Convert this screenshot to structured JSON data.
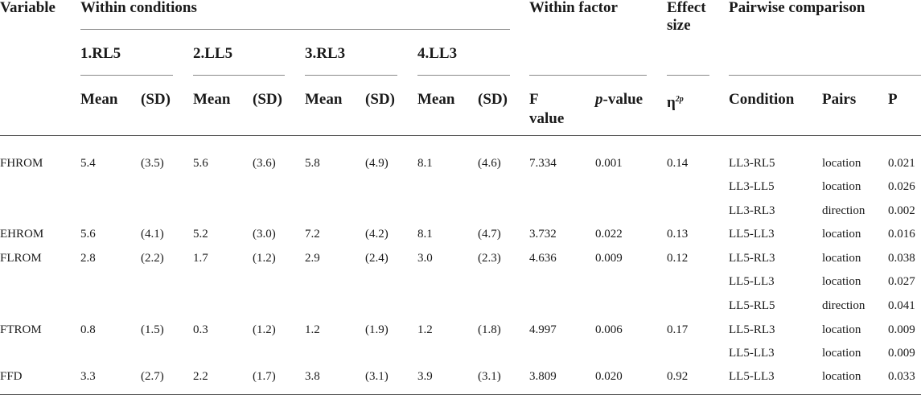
{
  "header": {
    "variable": "Variable",
    "within_conditions": "Within conditions",
    "within_factor": "Within factor",
    "effect": "Effect",
    "size": "size",
    "pairwise": "Pairwise comparison",
    "conditions": [
      "1.RL5",
      "2.LL5",
      "3.RL3",
      "4.LL3"
    ],
    "mean": "Mean",
    "sd": "(SD)",
    "f_line1": "F",
    "f_line2": "value",
    "p_italic": "p",
    "p_suffix": "-value",
    "eta": "η",
    "eta_sup": "2p",
    "condition": "Condition",
    "pairs": "Pairs",
    "p": "P"
  },
  "rows": [
    {
      "variable": "FHROM",
      "rl5_mean": "5.4",
      "rl5_sd": "(3.5)",
      "ll5_mean": "5.6",
      "ll5_sd": "(3.6)",
      "rl3_mean": "5.8",
      "rl3_sd": "(4.9)",
      "ll3_mean": "8.1",
      "ll3_sd": "(4.6)",
      "f": "7.334",
      "pval": "0.001",
      "eta": "0.14",
      "comparisons": [
        {
          "condition": "LL3-RL5",
          "pair": "location",
          "p": "0.021"
        },
        {
          "condition": "LL3-LL5",
          "pair": "location",
          "p": "0.026"
        },
        {
          "condition": "LL3-RL3",
          "pair": "direction",
          "p": "0.002"
        }
      ]
    },
    {
      "variable": "EHROM",
      "rl5_mean": "5.6",
      "rl5_sd": "(4.1)",
      "ll5_mean": "5.2",
      "ll5_sd": "(3.0)",
      "rl3_mean": "7.2",
      "rl3_sd": "(4.2)",
      "ll3_mean": "8.1",
      "ll3_sd": "(4.7)",
      "f": "3.732",
      "pval": "0.022",
      "eta": "0.13",
      "comparisons": [
        {
          "condition": "LL5-LL3",
          "pair": "location",
          "p": "0.016"
        }
      ]
    },
    {
      "variable": "FLROM",
      "rl5_mean": "2.8",
      "rl5_sd": "(2.2)",
      "ll5_mean": "1.7",
      "ll5_sd": "(1.2)",
      "rl3_mean": "2.9",
      "rl3_sd": "(2.4)",
      "ll3_mean": "3.0",
      "ll3_sd": "(2.3)",
      "f": "4.636",
      "pval": "0.009",
      "eta": "0.12",
      "comparisons": [
        {
          "condition": "LL5-RL3",
          "pair": "location",
          "p": "0.038"
        },
        {
          "condition": "LL5-LL3",
          "pair": "location",
          "p": "0.027"
        },
        {
          "condition": "LL5-RL5",
          "pair": "direction",
          "p": "0.041"
        }
      ]
    },
    {
      "variable": "FTROM",
      "rl5_mean": "0.8",
      "rl5_sd": "(1.5)",
      "ll5_mean": "0.3",
      "ll5_sd": "(1.2)",
      "rl3_mean": "1.2",
      "rl3_sd": "(1.9)",
      "ll3_mean": "1.2",
      "ll3_sd": "(1.8)",
      "f": "4.997",
      "pval": "0.006",
      "eta": "0.17",
      "comparisons": [
        {
          "condition": "LL5-RL3",
          "pair": "location",
          "p": "0.009"
        },
        {
          "condition": "LL5-LL3",
          "pair": "location",
          "p": "0.009"
        }
      ]
    },
    {
      "variable": "FFD",
      "rl5_mean": "3.3",
      "rl5_sd": "(2.7)",
      "ll5_mean": "2.2",
      "ll5_sd": "(1.7)",
      "rl3_mean": "3.8",
      "rl3_sd": "(3.1)",
      "ll3_mean": "3.9",
      "ll3_sd": "(3.1)",
      "f": "3.809",
      "pval": "0.020",
      "eta": "0.92",
      "comparisons": [
        {
          "condition": "LL5-LL3",
          "pair": "location",
          "p": "0.033"
        }
      ]
    }
  ]
}
